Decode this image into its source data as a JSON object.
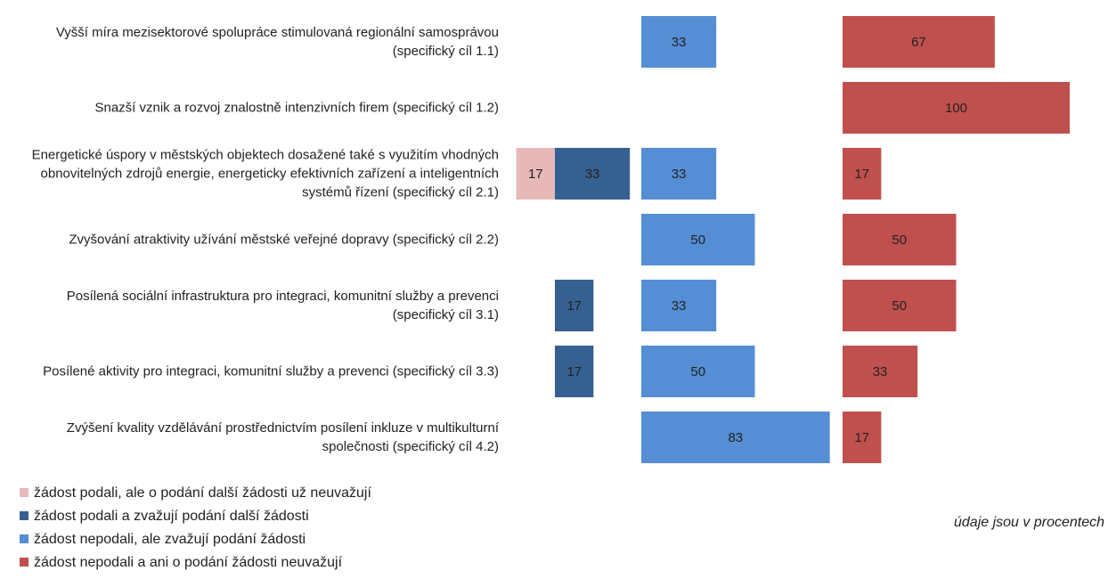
{
  "chart_data": {
    "type": "bar",
    "categories": [
      "Vyšší míra mezisektorové spolupráce stimulovaná regionální samosprávou (specifický cíl 1.1)",
      "Snazší vznik a rozvoj znalostně intenzivních firem (specifický cíl 1.2)",
      "Energetické úspory v městských objektech dosažené také s využitím vhodných obnovitelných zdrojů energie, energeticky efektivních zařízení a inteligentních systémů řízení (specifický cíl 2.1)",
      "Zvyšování atraktivity užívání městské veřejné dopravy (specifický cíl 2.2)",
      "Posílená sociální infrastruktura pro integraci, komunitní služby a prevenci (specifický cíl 3.1)",
      "Posílené aktivity pro integraci, komunitní služby a prevenci (specifický cíl 3.3)",
      "Zvýšení kvality vzdělávání prostřednictvím posílení inkluze v multikulturní společnosti (specifický cíl 4.2)"
    ],
    "series": [
      {
        "name": "žádost podali, ale o podání další žádosti už neuvažují",
        "color": "#e6b9b8",
        "values": [
          null,
          null,
          17,
          null,
          null,
          null,
          null
        ]
      },
      {
        "name": "žádost podali a zvažují podání další žádosti",
        "color": "#376092",
        "values": [
          null,
          null,
          33,
          null,
          17,
          17,
          null
        ]
      },
      {
        "name": "žádost nepodali, ale zvažují podání žádosti",
        "color": "#558ed5",
        "values": [
          33,
          null,
          33,
          50,
          33,
          50,
          83
        ]
      },
      {
        "name": "žádost nepodali a ani o podání žádosti neuvažují",
        "color": "#c0504d",
        "values": [
          67,
          100,
          17,
          50,
          50,
          33,
          17
        ]
      }
    ],
    "note": "údaje jsou v procentech"
  }
}
